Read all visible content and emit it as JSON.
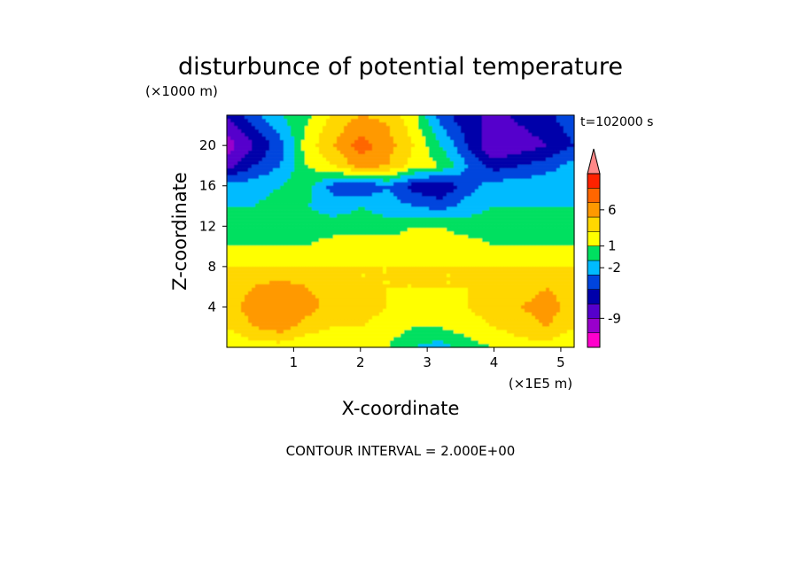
{
  "chart_data": {
    "type": "heatmap",
    "title": "disturbunce of potential temperature",
    "time_label": "t=102000 s",
    "xlabel": "X-coordinate",
    "ylabel": "Z-coordinate",
    "x_unit": "(×1E5 m)",
    "y_unit": "(×1000 m)",
    "xlim": [
      0,
      5.2
    ],
    "ylim": [
      0,
      23
    ],
    "x_ticks": [
      1,
      2,
      3,
      4,
      5
    ],
    "y_ticks": [
      4,
      8,
      12,
      16,
      20
    ],
    "contour_interval": 2,
    "contour_note": "CONTOUR INTERVAL = 2.000E+00",
    "colorbar": {
      "levels": [
        -13,
        -11,
        -9,
        -7,
        -5,
        -3,
        -1,
        1,
        3,
        5,
        7,
        9,
        11
      ],
      "colors": [
        "#ff00cc",
        "#9900cc",
        "#5500cc",
        "#0000aa",
        "#0044dd",
        "#00bbff",
        "#00e060",
        "#ffff00",
        "#ffd700",
        "#ff9900",
        "#ff6600",
        "#ff2200",
        "#ff8888"
      ],
      "labels": [
        "6",
        "1",
        "-2",
        "-9"
      ],
      "label_values": [
        6,
        1,
        -2,
        -9
      ]
    },
    "x": [
      0,
      0.4,
      0.8,
      1.2,
      1.6,
      2.0,
      2.4,
      2.8,
      3.2,
      3.6,
      4.0,
      4.4,
      4.8,
      5.2
    ],
    "z": [
      0,
      2,
      4,
      6,
      8,
      10,
      12,
      14,
      16,
      18,
      20,
      22
    ],
    "values": [
      [
        1,
        2,
        2,
        1,
        1,
        1,
        1,
        -1,
        -2,
        0,
        1,
        2,
        2,
        1
      ],
      [
        3,
        5,
        6,
        4,
        3,
        3,
        2,
        1,
        1,
        2,
        3,
        4,
        5,
        3
      ],
      [
        4,
        6,
        7,
        6,
        4,
        4,
        3,
        2,
        2,
        3,
        4,
        5,
        6,
        4
      ],
      [
        4,
        5,
        6,
        5,
        4,
        3,
        3,
        3,
        3,
        3,
        4,
        4,
        5,
        4
      ],
      [
        3,
        3,
        3,
        3,
        3,
        3,
        3,
        3,
        3,
        3,
        3,
        3,
        3,
        3
      ],
      [
        1,
        1,
        1,
        1,
        2,
        2,
        2,
        2,
        2,
        2,
        1,
        1,
        1,
        1
      ],
      [
        0,
        0,
        1,
        0,
        0,
        0,
        0,
        1,
        1,
        0,
        0,
        0,
        0,
        0
      ],
      [
        -1,
        -1,
        0,
        -1,
        -2,
        -1,
        -2,
        -3,
        -4,
        -2,
        -1,
        -1,
        -1,
        -1
      ],
      [
        -2,
        -2,
        -1,
        0,
        -4,
        -5,
        -3,
        -6,
        -7,
        -4,
        -2,
        -2,
        -1,
        -2
      ],
      [
        -8,
        -5,
        -3,
        1,
        3,
        6,
        5,
        2,
        1,
        -3,
        -6,
        -5,
        -4,
        -2
      ],
      [
        -10,
        -7,
        -4,
        2,
        5,
        8,
        6,
        3,
        -1,
        -5,
        -9,
        -8,
        -7,
        -5
      ],
      [
        -8,
        -5,
        -2,
        1,
        4,
        6,
        5,
        2,
        -3,
        -6,
        -8,
        -7,
        -6,
        -4
      ]
    ]
  }
}
